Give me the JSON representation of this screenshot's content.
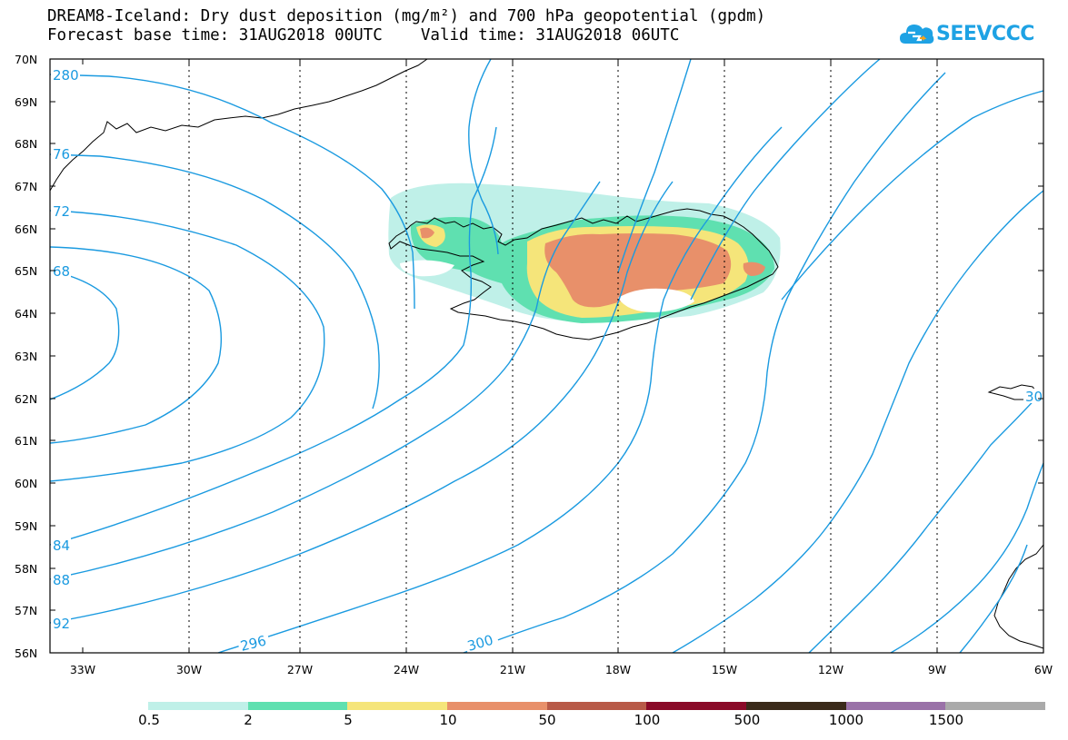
{
  "header": {
    "title_line": "DREAM8-Iceland: Dry dust deposition (mg/m²) and 700 hPa geopotential (gpdm)",
    "time_line": "Forecast base time: 31AUG2018 00UTC    Valid time: 31AUG2018 06UTC"
  },
  "logo": {
    "text": "SEEVCCC",
    "color": "#1ea2e4",
    "icon": "cloud-icon"
  },
  "map": {
    "lat_labels": [
      "70N",
      "69N",
      "68N",
      "67N",
      "66N",
      "65N",
      "64N",
      "63N",
      "62N",
      "61N",
      "60N",
      "59N",
      "58N",
      "57N",
      "56N"
    ],
    "lon_labels": [
      "33W",
      "30W",
      "27W",
      "24W",
      "21W",
      "18W",
      "15W",
      "12W",
      "9W",
      "6W"
    ],
    "contour_color": "#1a9ae0",
    "contour_labels": [
      "280",
      "76",
      "72",
      "68",
      "84",
      "88",
      "92",
      "296",
      "300",
      "30"
    ]
  },
  "legend": {
    "colors": [
      "#bff0e8",
      "#5fe0b0",
      "#f5e57a",
      "#e8906a",
      "#b85a48",
      "#8a0a28",
      "#3a2a1a",
      "#9a72a8",
      "#aaaaaa"
    ],
    "labels": [
      "0.5",
      "2",
      "5",
      "10",
      "50",
      "100",
      "500",
      "1000",
      "1500"
    ]
  }
}
